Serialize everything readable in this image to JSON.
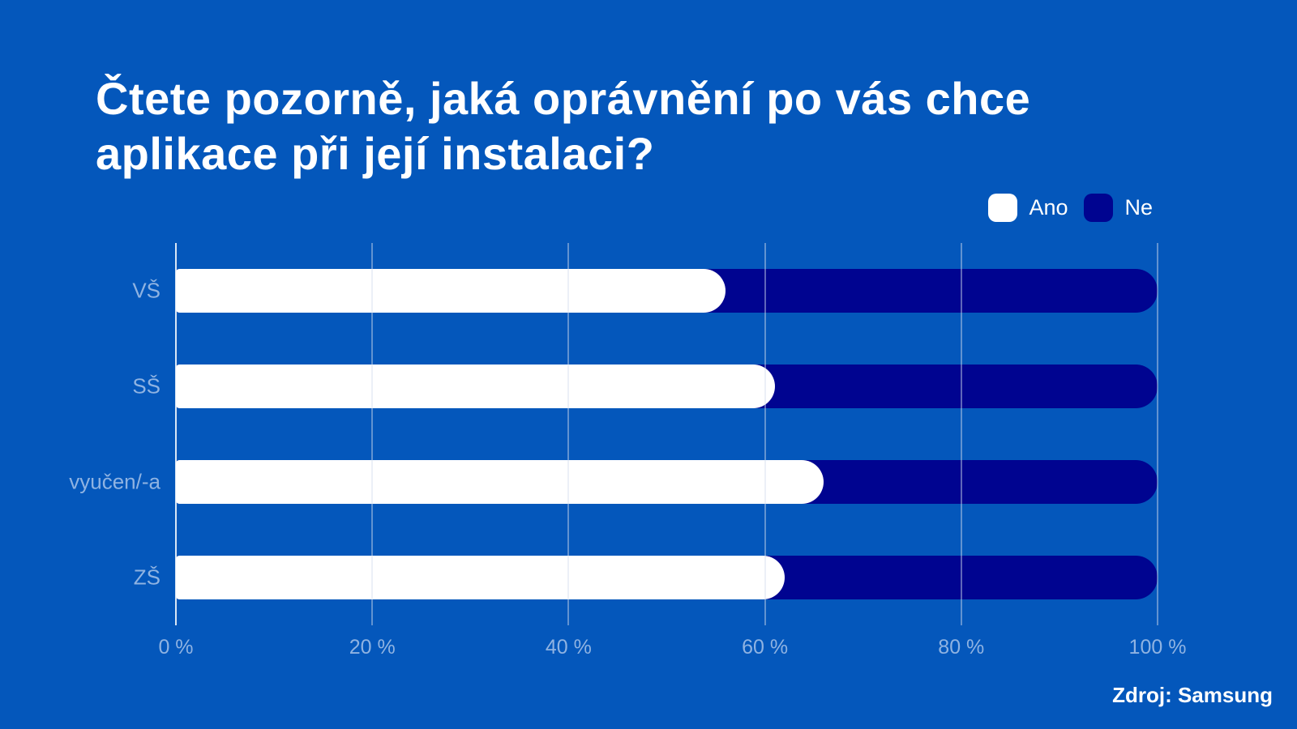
{
  "page": {
    "background_color": "#0457BB",
    "text_color": "#FFFFFF",
    "muted_label_color": "#8FB3E2"
  },
  "title": {
    "line1": "Čtete pozorně, jaká oprávnění po vás chce",
    "line2": "aplikace při její instalaci?"
  },
  "source": "Zdroj: Samsung",
  "chart_data": {
    "type": "bar",
    "orientation": "horizontal",
    "stacked": true,
    "title": "Čtete pozorně, jaká oprávnění po vás chce aplikace při její instalaci?",
    "categories": [
      "VŠ",
      "SŠ",
      "vyučen/-a",
      "ZŠ"
    ],
    "series": [
      {
        "name": "Ano",
        "color": "#FFFFFF",
        "values": [
          56,
          61,
          66,
          62
        ]
      },
      {
        "name": "Ne",
        "color": "#000490",
        "values": [
          44,
          39,
          34,
          38
        ]
      }
    ],
    "x_ticks": [
      "0 %",
      "20 %",
      "40 %",
      "60 %",
      "80 %",
      "100 %"
    ],
    "x_tick_values": [
      0,
      20,
      40,
      60,
      80,
      100
    ],
    "xlim": [
      0,
      100
    ],
    "xlabel": "",
    "ylabel": "",
    "grid": true,
    "legend_position": "top-right",
    "source": "Zdroj: Samsung"
  }
}
